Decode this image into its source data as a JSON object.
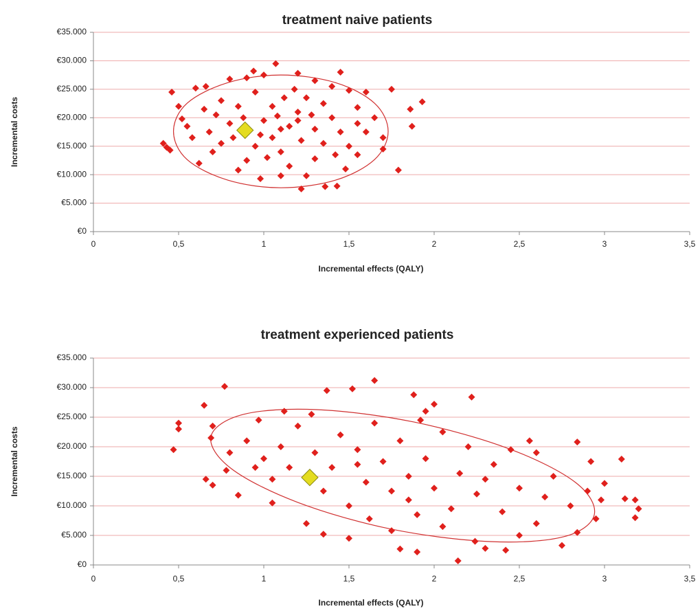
{
  "chart_data": [
    {
      "type": "scatter",
      "title": "treatment naive patients",
      "xlabel": "Incremental effects (QALY)",
      "ylabel": "Incremental costs",
      "xlim": [
        0,
        3.5
      ],
      "ylim": [
        0,
        35000
      ],
      "grid": true,
      "xticks": [
        0,
        {
          "value": 0.5,
          "label": "0,5"
        },
        1,
        {
          "value": 1.5,
          "label": "1,5"
        },
        2,
        {
          "value": 2.5,
          "label": "2,5"
        },
        3,
        {
          "value": 3.5,
          "label": "3,5"
        }
      ],
      "yticks": [
        {
          "value": 0,
          "label": "€0"
        },
        {
          "value": 5000,
          "label": "€5.000"
        },
        {
          "value": 10000,
          "label": "€10.000"
        },
        {
          "value": 15000,
          "label": "€15.000"
        },
        {
          "value": 20000,
          "label": "€20.000"
        },
        {
          "value": 25000,
          "label": "€25.000"
        },
        {
          "value": 30000,
          "label": "€30.000"
        },
        {
          "value": 35000,
          "label": "€35.000"
        }
      ],
      "series": [
        {
          "color": "#e0201c",
          "x": [
            0.41,
            0.43,
            0.45,
            0.46,
            0.5,
            0.52,
            1.07,
            0.94,
            1.45,
            1.79,
            1.93,
            1.86,
            1.87,
            1.75,
            1.6,
            1.5,
            1.36,
            1.43,
            1.22,
            0.98,
            0.85,
            0.62,
            0.6,
            0.66,
            0.7,
            0.75,
            0.8,
            0.9,
            1.0,
            1.2,
            1.3,
            1.4,
            1.55,
            1.65,
            1.7,
            1.7,
            1.55,
            1.48,
            1.25,
            1.1,
            0.9,
            0.75,
            0.68,
            0.58,
            0.55,
            0.72,
            0.8,
            0.85,
            0.95,
            1.05,
            1.0,
            1.05,
            1.1,
            1.15,
            1.2,
            1.25,
            1.3,
            1.35,
            1.4,
            1.45,
            1.5,
            1.6,
            0.95,
            1.15,
            1.3,
            1.18,
            0.88,
            1.08,
            1.22,
            1.12,
            0.98,
            1.35,
            1.28,
            0.82,
            1.02,
            1.42,
            1.55,
            0.65,
            1.1,
            1.2
          ],
          "values": [
            15500,
            14800,
            14300,
            24500,
            22000,
            19800,
            29500,
            28200,
            28000,
            10800,
            22800,
            21500,
            18500,
            25000,
            24500,
            24800,
            7900,
            8000,
            7500,
            9300,
            10800,
            12000,
            25200,
            25500,
            14000,
            23000,
            26800,
            27000,
            27500,
            27800,
            26500,
            25500,
            21800,
            20000,
            16500,
            14500,
            13500,
            11000,
            9800,
            9800,
            12500,
            15500,
            17500,
            16500,
            18500,
            20500,
            19000,
            22000,
            24500,
            22000,
            19500,
            16500,
            14000,
            18500,
            21000,
            23500,
            18000,
            15500,
            20000,
            17500,
            15000,
            17500,
            15000,
            11500,
            12800,
            25000,
            20000,
            20300,
            16000,
            23500,
            17000,
            22500,
            20500,
            16500,
            13000,
            13500,
            19000,
            21500,
            18000,
            19500
          ]
        },
        {
          "color": "#e4dc20",
          "x": [
            0.89
          ],
          "values": [
            17800
          ]
        }
      ],
      "ellipse": {
        "color": "#d03030",
        "x": [
          1.73,
          1.65,
          1.42,
          1.1,
          0.79,
          0.55,
          0.47,
          0.55,
          0.79,
          1.1,
          1.42,
          1.65
        ],
        "y": [
          17600,
          22550,
          26170,
          27500,
          26170,
          22550,
          17600,
          12650,
          9030,
          7700,
          9030,
          12650
        ]
      }
    },
    {
      "type": "scatter",
      "title": "treatment experienced patients",
      "xlabel": "Incremental effects (QALY)",
      "ylabel": "Incremental costs",
      "xlim": [
        0,
        3.5
      ],
      "ylim": [
        0,
        35000
      ],
      "grid": true,
      "xticks": [
        0,
        {
          "value": 0.5,
          "label": "0,5"
        },
        1,
        {
          "value": 1.5,
          "label": "1,5"
        },
        2,
        {
          "value": 2.5,
          "label": "2,5"
        },
        3,
        {
          "value": 3.5,
          "label": "3,5"
        }
      ],
      "yticks": [
        {
          "value": 0,
          "label": "€0"
        },
        {
          "value": 5000,
          "label": "€5.000"
        },
        {
          "value": 10000,
          "label": "€10.000"
        },
        {
          "value": 15000,
          "label": "€15.000"
        },
        {
          "value": 20000,
          "label": "€20.000"
        },
        {
          "value": 25000,
          "label": "€25.000"
        },
        {
          "value": 30000,
          "label": "€30.000"
        },
        {
          "value": 35000,
          "label": "€35.000"
        }
      ],
      "series": [
        {
          "color": "#e0201c",
          "x": [
            0.47,
            0.5,
            0.5,
            0.65,
            0.66,
            0.7,
            0.77,
            0.69,
            0.7,
            0.85,
            0.9,
            0.97,
            1.05,
            1.12,
            1.2,
            1.25,
            1.35,
            1.37,
            1.52,
            1.65,
            1.5,
            1.75,
            1.8,
            1.88,
            1.9,
            1.95,
            2.0,
            2.14,
            2.22,
            2.24,
            2.3,
            2.42,
            2.5,
            2.56,
            2.6,
            2.75,
            2.84,
            2.84,
            2.92,
            2.95,
            3.0,
            3.1,
            3.12,
            3.18,
            3.18,
            3.2,
            2.98,
            2.9,
            2.8,
            2.7,
            2.6,
            2.5,
            2.4,
            2.35,
            2.25,
            2.2,
            2.15,
            2.1,
            2.05,
            2.0,
            1.95,
            1.9,
            1.85,
            1.8,
            1.75,
            1.7,
            1.65,
            1.6,
            1.55,
            1.5,
            1.45,
            1.4,
            1.35,
            1.3,
            1.15,
            1.1,
            1.05,
            1.0,
            0.95,
            0.8,
            0.78,
            2.45,
            2.65,
            1.85,
            2.05,
            2.3,
            1.62,
            1.92,
            1.28,
            1.55
          ],
          "values": [
            19500,
            24000,
            23000,
            27000,
            14500,
            13500,
            30200,
            21500,
            23500,
            11800,
            21000,
            24500,
            10500,
            26000,
            23500,
            7000,
            5200,
            29500,
            29800,
            31200,
            4500,
            5800,
            2700,
            28800,
            2200,
            26000,
            27200,
            700,
            28400,
            4000,
            2800,
            2500,
            5000,
            21000,
            7000,
            3300,
            20800,
            5500,
            17500,
            7800,
            13800,
            17900,
            11200,
            11000,
            8000,
            9500,
            11000,
            12500,
            10000,
            15000,
            19000,
            13000,
            9000,
            17000,
            12000,
            20000,
            15500,
            9500,
            22500,
            13000,
            18000,
            8500,
            15000,
            21000,
            12500,
            17500,
            24000,
            14000,
            19500,
            10000,
            22000,
            16500,
            12500,
            19000,
            16500,
            20000,
            14500,
            18000,
            16500,
            19000,
            16000,
            19500,
            11500,
            11000,
            6500,
            14500,
            7800,
            24500,
            25500,
            17000
          ]
        },
        {
          "color": "#e4dc20",
          "x": [
            1.27
          ],
          "values": [
            14800
          ]
        }
      ],
      "ellipse": {
        "color": "#d03030",
        "x": [
          2.94,
          2.76,
          2.33,
          1.75,
          1.2,
          0.81,
          0.69,
          0.88,
          1.31,
          1.88,
          2.44,
          2.83
        ],
        "y": [
          8490,
          4770,
          3950,
          6050,
          10580,
          16280,
          21740,
          25470,
          26280,
          24190,
          19650,
          13950
        ]
      }
    }
  ]
}
